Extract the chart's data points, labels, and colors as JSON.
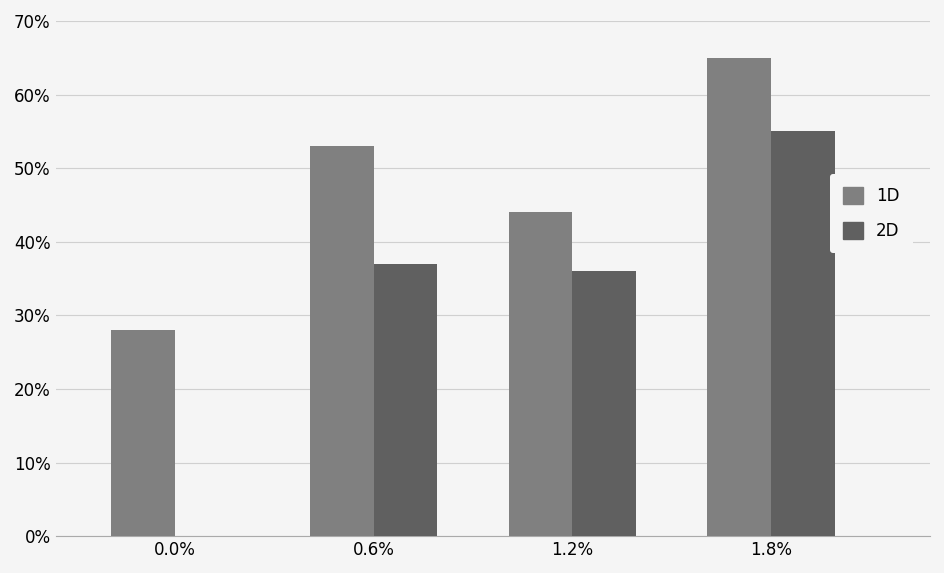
{
  "categories": [
    "0.0%",
    "0.6%",
    "1.2%",
    "1.8%"
  ],
  "series_1D": [
    0.28,
    0.53,
    0.44,
    0.65
  ],
  "series_2D": [
    null,
    0.37,
    0.36,
    0.55
  ],
  "color_1D": "#808080",
  "color_2D": "#606060",
  "ylim": [
    0,
    0.7
  ],
  "yticks": [
    0.0,
    0.1,
    0.2,
    0.3,
    0.4,
    0.5,
    0.6,
    0.7
  ],
  "bar_width": 0.32,
  "group_positions": [
    1,
    2,
    3,
    4
  ],
  "legend_labels": [
    "1D",
    "2D"
  ],
  "background_color": "#f5f5f5",
  "plot_bg_color": "#f5f5f5",
  "grid_color": "#d0d0d0",
  "tick_label_fontsize": 12,
  "legend_fontsize": 12,
  "xlim": [
    0.4,
    4.8
  ]
}
